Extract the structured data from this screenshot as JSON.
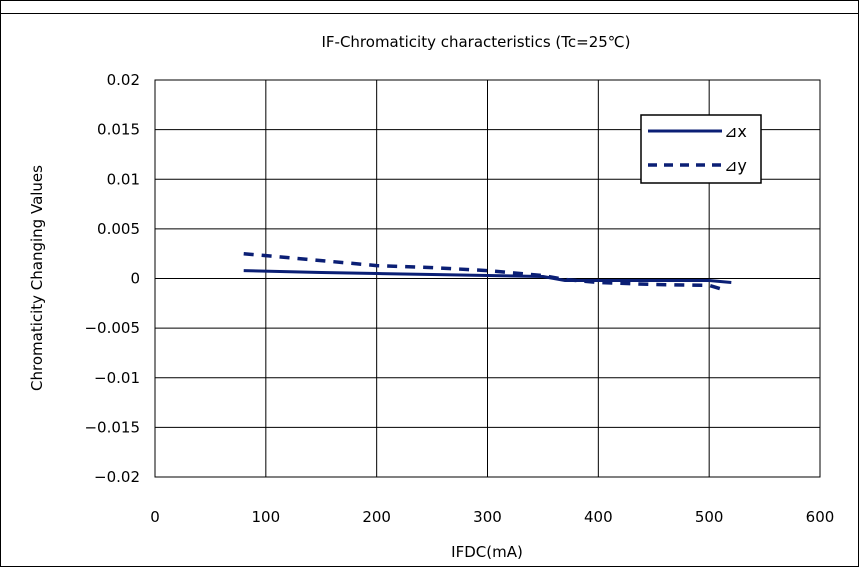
{
  "chart_data": {
    "type": "line",
    "title": "IF-Chromaticity characteristics (Tc=25℃)",
    "xlabel": "IFDC(mA)",
    "ylabel": "Chromaticity Changing Values",
    "xlim": [
      0,
      600
    ],
    "ylim": [
      -0.02,
      0.02
    ],
    "x_ticks": [
      "0",
      "100",
      "200",
      "300",
      "400",
      "500",
      "600"
    ],
    "y_ticks": [
      "0.02",
      "0.015",
      "0.01",
      "0.005",
      "0",
      "−0.005",
      "−0.01",
      "−0.015",
      "−0.02"
    ],
    "grid": true,
    "legend_position": "top-right",
    "series": [
      {
        "name": "⊿x",
        "style": "solid",
        "color": "#0b1f75",
        "x": [
          80,
          150,
          200,
          250,
          300,
          350,
          370,
          400,
          450,
          500,
          520
        ],
        "y": [
          0.0008,
          0.0006,
          0.0005,
          0.0004,
          0.0003,
          0.0002,
          -0.0002,
          -0.0002,
          -0.0002,
          -0.0002,
          -0.0004
        ]
      },
      {
        "name": "⊿y",
        "style": "dashed",
        "color": "#0b1f75",
        "x": [
          80,
          150,
          200,
          250,
          300,
          350,
          370,
          400,
          450,
          500,
          515
        ],
        "y": [
          0.0025,
          0.0018,
          0.0013,
          0.0011,
          0.0008,
          0.0003,
          -0.0001,
          -0.0004,
          -0.0006,
          -0.0007,
          -0.0012
        ]
      }
    ]
  }
}
